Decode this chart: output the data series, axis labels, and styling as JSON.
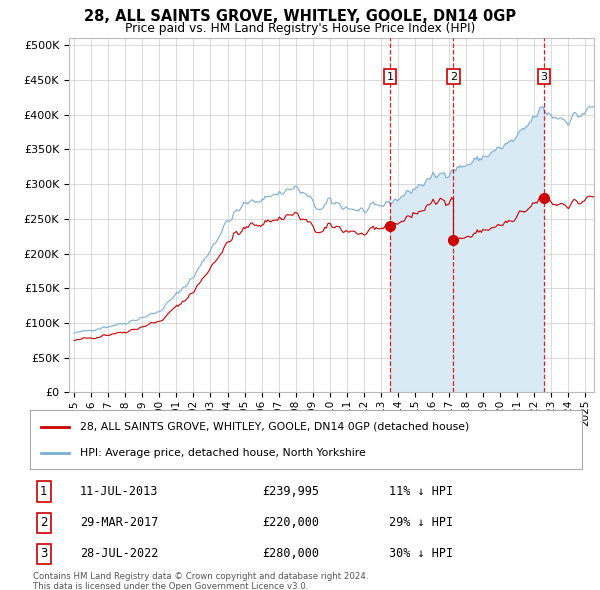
{
  "title": "28, ALL SAINTS GROVE, WHITLEY, GOOLE, DN14 0GP",
  "subtitle": "Price paid vs. HM Land Registry's House Price Index (HPI)",
  "title_fontsize": 10.5,
  "subtitle_fontsize": 9,
  "yticks": [
    0,
    50000,
    100000,
    150000,
    200000,
    250000,
    300000,
    350000,
    400000,
    450000,
    500000
  ],
  "ytick_labels": [
    "£0",
    "£50K",
    "£100K",
    "£150K",
    "£200K",
    "£250K",
    "£300K",
    "£350K",
    "£400K",
    "£450K",
    "£500K"
  ],
  "ylim": [
    0,
    510000
  ],
  "xlim_start": 1994.7,
  "xlim_end": 2025.5,
  "transactions": [
    {
      "num": 1,
      "date": "11-JUL-2013",
      "price": 239995,
      "year": 2013.53,
      "hpi_pct": 11,
      "direction": "↓"
    },
    {
      "num": 2,
      "date": "29-MAR-2017",
      "price": 220000,
      "year": 2017.24,
      "hpi_pct": 29,
      "direction": "↓"
    },
    {
      "num": 3,
      "date": "28-JUL-2022",
      "price": 280000,
      "year": 2022.57,
      "hpi_pct": 30,
      "direction": "↓"
    }
  ],
  "property_line_color": "#cc0000",
  "hpi_line_color": "#7aaed4",
  "shade_color": "#daeaf5",
  "vline_color": "#cc0000",
  "box_edge_color": "#cc0000",
  "legend_entries": [
    "28, ALL SAINTS GROVE, WHITLEY, GOOLE, DN14 0GP (detached house)",
    "HPI: Average price, detached house, North Yorkshire"
  ],
  "footer_line1": "Contains HM Land Registry data © Crown copyright and database right 2024.",
  "footer_line2": "This data is licensed under the Open Government Licence v3.0.",
  "background_color": "#ffffff",
  "grid_color": "#cccccc",
  "panel_border_color": "#aaaaaa"
}
